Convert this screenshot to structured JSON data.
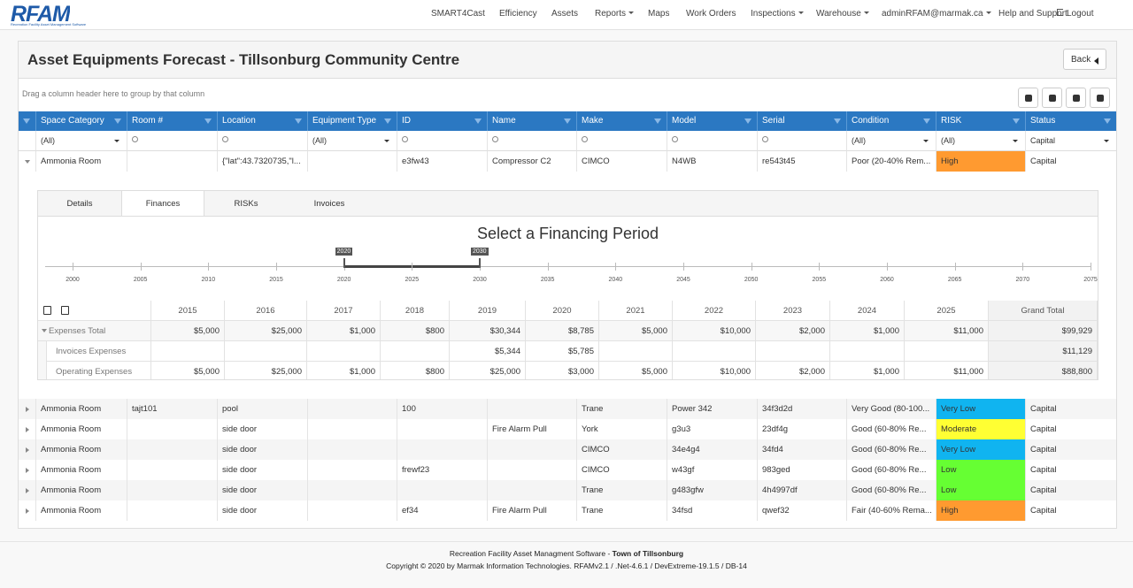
{
  "nav": {
    "logo": "RFAM",
    "logo_subtitle": "Recreation Facility Asset Management Software",
    "items": [
      "SMART4Cast",
      "Efficiency",
      "Assets",
      "Reports",
      "Maps",
      "Work Orders",
      "Inspections",
      "Warehouse",
      "adminRFAM@marmak.ca",
      "Help and Support",
      "Logout"
    ],
    "dropdown_items": [
      3,
      6,
      7,
      8
    ]
  },
  "page": {
    "title": "Asset Equipments Forecast - Tillsonburg Community Centre",
    "back": "Back",
    "group_hint": "Drag a column header here to group by that column"
  },
  "grid": {
    "columns": [
      "Space Category",
      "Room #",
      "Location",
      "Equipment Type",
      "ID",
      "Name",
      "Make",
      "Model",
      "Serial",
      "Condition",
      "RISK",
      "Status"
    ],
    "filters": [
      "(All)",
      null,
      null,
      "(All)",
      null,
      null,
      null,
      null,
      null,
      "(All)",
      "(All)",
      "Capital"
    ],
    "risk_column": 10,
    "risk_colors": {
      "High": "#ff9a30",
      "Very Low": "#10b4f0",
      "Moderate": "#ffff33",
      "Low": "#66ff33"
    },
    "rows": [
      [
        "Ammonia Room",
        null,
        "{\"lat\":43.7320735,\"l...",
        null,
        "e3fw43",
        "Compressor C2",
        "CIMCO",
        "N4WB",
        "re543t45",
        "Poor (20-40% Rem...",
        "High",
        "Capital"
      ],
      [
        "Ammonia Room",
        "tajt101",
        "pool",
        null,
        "100",
        null,
        "Trane",
        "Power 342",
        "34f3d2d",
        "Very Good (80-100...",
        "Very Low",
        "Capital"
      ],
      [
        "Ammonia Room",
        null,
        "side door",
        null,
        null,
        "Fire Alarm Pull",
        "York",
        "g3u3",
        "23df4g",
        "Good (60-80% Re...",
        "Moderate",
        "Capital"
      ],
      [
        "Ammonia Room",
        null,
        "side door",
        null,
        null,
        null,
        "CIMCO",
        "34e4g4",
        "34fd4",
        "Good (60-80% Re...",
        "Very Low",
        "Capital"
      ],
      [
        "Ammonia Room",
        null,
        "side door",
        null,
        "frewf23",
        null,
        "CIMCO",
        "w43gf",
        "983ged",
        "Good (60-80% Re...",
        "Low",
        "Capital"
      ],
      [
        "Ammonia Room",
        null,
        "side door",
        null,
        null,
        null,
        "Trane",
        "g483gfw",
        "4h4997df",
        "Good (60-80% Re...",
        "Low",
        "Capital"
      ],
      [
        "Ammonia Room",
        null,
        "side door",
        null,
        "ef34",
        "Fire Alarm Pull",
        "Trane",
        "34fsd",
        "qwef32",
        "Fair (40-60% Rema...",
        "High",
        "Capital"
      ]
    ],
    "expanded_row": 0
  },
  "detail": {
    "tabs": [
      "Details",
      "Finances",
      "RISKs",
      "Invoices"
    ],
    "active_tab": 1,
    "period_title": "Select a Financing Period",
    "slider": {
      "range": [
        2000,
        2075
      ],
      "ticks": [
        2000,
        2005,
        2010,
        2015,
        2020,
        2025,
        2030,
        2035,
        2040,
        2045,
        2050,
        2055,
        2060,
        2065,
        2070,
        2075
      ],
      "selected": [
        2020,
        2030
      ]
    },
    "pivot": {
      "columns": [
        "2015",
        "2016",
        "2017",
        "2018",
        "2019",
        "2020",
        "2021",
        "2022",
        "2023",
        "2024",
        "2025",
        "Grand Total"
      ],
      "rows": [
        {
          "label": "Expenses Total",
          "values": [
            "$5,000",
            "$25,000",
            "$1,000",
            "$800",
            "$30,344",
            "$8,785",
            "$5,000",
            "$10,000",
            "$2,000",
            "$1,000",
            "$11,000",
            "$99,929"
          ]
        },
        {
          "label": "Invoices Expenses",
          "values": [
            null,
            null,
            null,
            null,
            "$5,344",
            "$5,785",
            null,
            null,
            null,
            null,
            null,
            "$11,129"
          ]
        },
        {
          "label": "Operating Expenses",
          "values": [
            "$5,000",
            "$25,000",
            "$1,000",
            "$800",
            "$25,000",
            "$3,000",
            "$5,000",
            "$10,000",
            "$2,000",
            "$1,000",
            "$11,000",
            "$88,800"
          ]
        }
      ]
    }
  },
  "footer": {
    "line1": "Recreation Facility Asset Managment Software - ",
    "line1_bold": "Town of Tillsonburg",
    "line2": "Copyright © 2020 by Marmak Information Technologies. RFAMv2.1 / .Net-4.6.1 / DevExtreme-19.1.5 / DB-14"
  }
}
